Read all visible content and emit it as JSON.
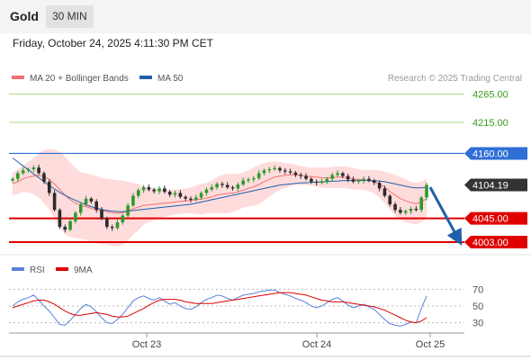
{
  "header": {
    "symbol": "Gold",
    "timeframe": "30 MIN",
    "datetime": "Friday, October 24, 2025 4:11:30 PM CET"
  },
  "colors": {
    "ma20": "#f07070",
    "ma50": "#1f5fa8",
    "bollinger_fill": "#ffd6d6",
    "resistance": "#aad98e",
    "resistance_text": "#3a9a1a",
    "pivot": "#2f6fd6",
    "support": "#e00000",
    "current": "#333333",
    "candle_up": "#2d9a2d",
    "candle_down": "#2b2b2b",
    "arrow": "#1f5fa8",
    "rsi": "#5a80d8",
    "rsi_ma": "#e00000"
  },
  "chart_data": [
    {
      "type": "line",
      "title": "",
      "legend": [
        {
          "name": "MA 20 + Bollinger Bands",
          "color": "#f07070"
        },
        {
          "name": "MA 50",
          "color": "#1f5fa8"
        }
      ],
      "watermark": "Research © 2025 Trading Central",
      "x_ticks": [
        "Oct 23",
        "Oct 24",
        "Oct 25"
      ],
      "ylim": [
        3985,
        4285
      ],
      "levels": [
        {
          "label": "4265.00",
          "value": 4265,
          "kind": "resistance"
        },
        {
          "label": "4215.00",
          "value": 4215,
          "kind": "resistance"
        },
        {
          "label": "4160.00",
          "value": 4160,
          "kind": "pivot"
        },
        {
          "label": "4104.19",
          "value": 4104.19,
          "kind": "current"
        },
        {
          "label": "4045.00",
          "value": 4045,
          "kind": "support"
        },
        {
          "label": "4003.00",
          "value": 4003,
          "kind": "support"
        }
      ],
      "close": [
        4115,
        4125,
        4130,
        4132,
        4135,
        4125,
        4110,
        4090,
        4060,
        4030,
        4025,
        4040,
        4055,
        4070,
        4080,
        4075,
        4060,
        4045,
        4030,
        4028,
        4038,
        4050,
        4068,
        4085,
        4095,
        4100,
        4096,
        4093,
        4098,
        4092,
        4087,
        4090,
        4083,
        4080,
        4078,
        4082,
        4090,
        4096,
        4100,
        4106,
        4104,
        4100,
        4098,
        4105,
        4112,
        4114,
        4116,
        4125,
        4130,
        4132,
        4134,
        4130,
        4128,
        4126,
        4122,
        4120,
        4115,
        4110,
        4108,
        4110,
        4115,
        4122,
        4125,
        4120,
        4114,
        4110,
        4112,
        4115,
        4112,
        4108,
        4098,
        4085,
        4070,
        4060,
        4055,
        4058,
        4062,
        4060,
        4082,
        4104.19
      ],
      "ma20": [
        4106,
        4110,
        4115,
        4118,
        4120,
        4121,
        4119,
        4114,
        4106,
        4096,
        4086,
        4078,
        4072,
        4068,
        4066,
        4063,
        4060,
        4058,
        4057,
        4055,
        4054,
        4055,
        4058,
        4062,
        4065,
        4068,
        4069,
        4070,
        4071,
        4072,
        4073,
        4074,
        4075,
        4076,
        4077,
        4078,
        4079,
        4081,
        4083,
        4086,
        4088,
        4089,
        4090,
        4092,
        4095,
        4098,
        4101,
        4105,
        4110,
        4114,
        4118,
        4120,
        4121,
        4122,
        4122,
        4121,
        4120,
        4119,
        4118,
        4117,
        4117,
        4117,
        4118,
        4118,
        4117,
        4115,
        4114,
        4113,
        4112,
        4110,
        4106,
        4100,
        4093,
        4086,
        4080,
        4076,
        4073,
        4071,
        4074,
        4080
      ],
      "bb_upper": [
        4126,
        4132,
        4138,
        4145,
        4152,
        4160,
        4166,
        4168,
        4167,
        4162,
        4155,
        4144,
        4134,
        4127,
        4125,
        4123,
        4120,
        4117,
        4115,
        4114,
        4113,
        4112,
        4110,
        4108,
        4106,
        4102,
        4100,
        4098,
        4097,
        4096,
        4096,
        4096,
        4097,
        4098,
        4100,
        4103,
        4106,
        4108,
        4112,
        4118,
        4122,
        4124,
        4124,
        4124,
        4126,
        4130,
        4135,
        4140,
        4143,
        4145,
        4146,
        4145,
        4143,
        4142,
        4140,
        4138,
        4136,
        4135,
        4135,
        4135,
        4135,
        4136,
        4137,
        4137,
        4136,
        4134,
        4132,
        4131,
        4131,
        4131,
        4130,
        4128,
        4125,
        4122,
        4118,
        4114,
        4110,
        4108,
        4110,
        4115
      ],
      "bb_lower": [
        4086,
        4088,
        4092,
        4091,
        4088,
        4082,
        4072,
        4060,
        4045,
        4030,
        4017,
        4012,
        4010,
        4009,
        4007,
        4003,
        4000,
        3999,
        3999,
        3996,
        3995,
        3998,
        4006,
        4016,
        4024,
        4034,
        4038,
        4042,
        4045,
        4048,
        4050,
        4052,
        4053,
        4054,
        4054,
        4053,
        4052,
        4054,
        4054,
        4054,
        4054,
        4054,
        4056,
        4060,
        4064,
        4066,
        4067,
        4070,
        4077,
        4083,
        4090,
        4095,
        4099,
        4102,
        4104,
        4104,
        4104,
        4103,
        4101,
        4099,
        4099,
        4098,
        4099,
        4099,
        4098,
        4096,
        4096,
        4095,
        4093,
        4089,
        4082,
        4072,
        4061,
        4050,
        4042,
        4038,
        4036,
        4034,
        4038,
        4045
      ],
      "ma50": [
        4152,
        4145,
        4138,
        4131,
        4124,
        4117,
        4110,
        4103,
        4097,
        4091,
        4086,
        4081,
        4077,
        4073,
        4069,
        4066,
        4063,
        4061,
        4059,
        4058,
        4057,
        4057,
        4058,
        4059,
        4060,
        4061,
        4062,
        4063,
        4064,
        4065,
        4066,
        4067,
        4068,
        4069,
        4070,
        4072,
        4074,
        4076,
        4078,
        4080,
        4082,
        4084,
        4086,
        4088,
        4090,
        4092,
        4094,
        4096,
        4098,
        4100,
        4102,
        4104,
        4105,
        4106,
        4107,
        4108,
        4108,
        4109,
        4109,
        4110,
        4110,
        4111,
        4111,
        4112,
        4112,
        4112,
        4112,
        4112,
        4112,
        4112,
        4111,
        4110,
        4108,
        4106,
        4104,
        4102,
        4100,
        4099,
        4099,
        4100
      ],
      "forecast_arrow": {
        "from": 4100,
        "to": 4003
      }
    },
    {
      "type": "line",
      "title": "",
      "legend": [
        {
          "name": "RSI",
          "color": "#5a80d8"
        },
        {
          "name": "9MA",
          "color": "#e00000"
        }
      ],
      "y_ticks": [
        "70",
        "50",
        "30"
      ],
      "ylim": [
        20,
        80
      ],
      "rsi": [
        50,
        55,
        58,
        60,
        63,
        57,
        50,
        44,
        36,
        28,
        27,
        33,
        40,
        47,
        52,
        49,
        43,
        36,
        30,
        29,
        34,
        40,
        48,
        56,
        60,
        62,
        59,
        57,
        60,
        56,
        52,
        54,
        50,
        47,
        46,
        49,
        54,
        58,
        60,
        63,
        62,
        59,
        57,
        60,
        63,
        64,
        65,
        67,
        68,
        69,
        69,
        66,
        64,
        62,
        59,
        57,
        54,
        50,
        48,
        50,
        54,
        58,
        60,
        56,
        51,
        48,
        50,
        52,
        49,
        46,
        40,
        34,
        29,
        27,
        26,
        28,
        31,
        30,
        47,
        62
      ],
      "rsi_ma": [
        48,
        50,
        52,
        54,
        56,
        57,
        57,
        55,
        52,
        48,
        44,
        41,
        39,
        39,
        40,
        41,
        42,
        41,
        40,
        38,
        37,
        37,
        38,
        41,
        44,
        47,
        51,
        54,
        57,
        58,
        58,
        58,
        57,
        55,
        54,
        53,
        53,
        53,
        53,
        54,
        55,
        56,
        57,
        58,
        59,
        60,
        61,
        62,
        63,
        64,
        65,
        66,
        66,
        66,
        65,
        64,
        63,
        61,
        59,
        57,
        56,
        55,
        55,
        55,
        54,
        53,
        52,
        51,
        50,
        49,
        47,
        45,
        42,
        39,
        36,
        33,
        31,
        30,
        32,
        36
      ]
    }
  ]
}
